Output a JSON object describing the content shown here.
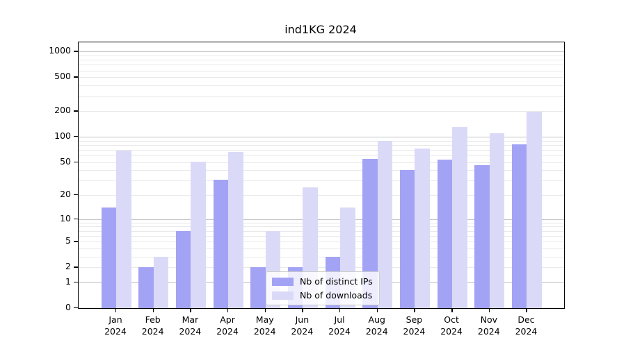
{
  "chart_data": {
    "type": "bar",
    "title": "ind1KG 2024",
    "categories": [
      {
        "month": "Jan",
        "year": "2024"
      },
      {
        "month": "Feb",
        "year": "2024"
      },
      {
        "month": "Mar",
        "year": "2024"
      },
      {
        "month": "Apr",
        "year": "2024"
      },
      {
        "month": "May",
        "year": "2024"
      },
      {
        "month": "Jun",
        "year": "2024"
      },
      {
        "month": "Jul",
        "year": "2024"
      },
      {
        "month": "Aug",
        "year": "2024"
      },
      {
        "month": "Sep",
        "year": "2024"
      },
      {
        "month": "Oct",
        "year": "2024"
      },
      {
        "month": "Nov",
        "year": "2024"
      },
      {
        "month": "Dec",
        "year": "2024"
      }
    ],
    "series": [
      {
        "name": "Nb of distinct IPs",
        "color": "#a3a3f5",
        "values": [
          14,
          2,
          7,
          31,
          2,
          2,
          3,
          55,
          40,
          54,
          46,
          82
        ]
      },
      {
        "name": "Nb of downloads",
        "color": "#dadaf8",
        "values": [
          68,
          3,
          51,
          66,
          7,
          25,
          14,
          90,
          72,
          130,
          110,
          198
        ]
      }
    ],
    "y_axis": {
      "scale": "log1p",
      "tick_values": [
        0,
        1,
        2,
        5,
        10,
        20,
        50,
        100,
        200,
        500,
        1000
      ],
      "range": [
        0,
        1000
      ],
      "grid_major_on_decades": true,
      "grid_minor": true
    },
    "legend": {
      "position": "lower-center-over-plot"
    },
    "colors": {
      "major_grid": "#c2c2c2",
      "minor_grid": "#e9e9e9",
      "axis": "#000000"
    }
  }
}
